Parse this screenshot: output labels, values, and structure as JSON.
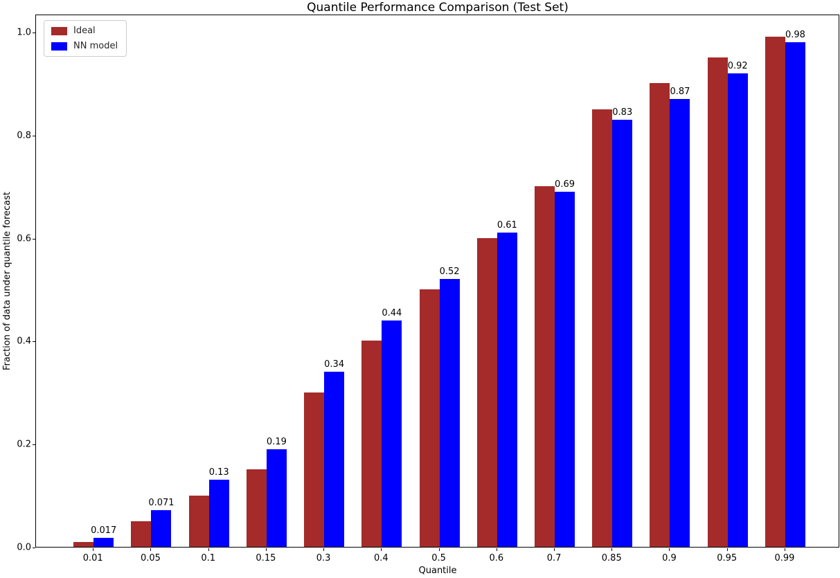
{
  "chart_data": {
    "type": "bar",
    "title": "Quantile Performance Comparison (Test Set)",
    "xlabel": "Quantile",
    "ylabel": "Fraction of data under quantile forecast",
    "categories": [
      "0.01",
      "0.05",
      "0.1",
      "0.15",
      "0.3",
      "0.4",
      "0.5",
      "0.6",
      "0.7",
      "0.85",
      "0.9",
      "0.95",
      "0.99"
    ],
    "series": [
      {
        "name": "Ideal",
        "color": "#A52A2A",
        "values": [
          0.01,
          0.05,
          0.1,
          0.15,
          0.3,
          0.4,
          0.5,
          0.6,
          0.7,
          0.85,
          0.9,
          0.95,
          0.99
        ]
      },
      {
        "name": "NN model",
        "color": "#0000FF",
        "values": [
          0.017,
          0.071,
          0.13,
          0.19,
          0.34,
          0.44,
          0.52,
          0.61,
          0.69,
          0.83,
          0.87,
          0.92,
          0.98
        ],
        "value_labels": [
          "0.017",
          "0.071",
          "0.13",
          "0.19",
          "0.34",
          "0.44",
          "0.52",
          "0.61",
          "0.69",
          "0.83",
          "0.87",
          "0.92",
          "0.98"
        ]
      }
    ],
    "y_tick_labels": [
      "0.0",
      "0.2",
      "0.4",
      "0.6",
      "0.8",
      "1.0"
    ],
    "y_tick_values": [
      0.0,
      0.2,
      0.4,
      0.6,
      0.8,
      1.0
    ],
    "ylim": [
      0,
      1.035
    ],
    "grid": false,
    "legend_position": "upper left",
    "background_color": "#ffffff"
  }
}
